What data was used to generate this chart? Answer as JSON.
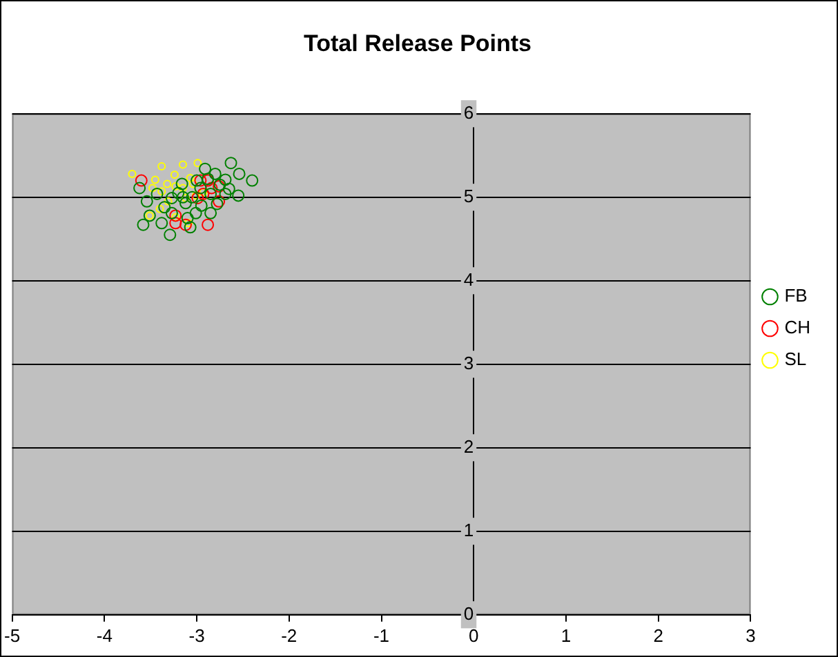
{
  "chart_data": {
    "type": "scatter",
    "title": "Total Release Points",
    "xlim": [
      -5,
      3
    ],
    "xticks": [
      -5,
      -4,
      -3,
      -2,
      -1,
      0,
      1,
      2,
      3
    ],
    "ylim": [
      0,
      6
    ],
    "yticks": [
      0,
      1,
      2,
      3,
      4,
      5,
      6
    ],
    "grid": "y",
    "legend": "right",
    "marker": "circle",
    "series": [
      {
        "name": "FB",
        "color": "#008000",
        "x": [
          -2.4,
          -3.58,
          -3.29,
          -2.63,
          -2.55,
          -3.62,
          -3.54,
          -3.38,
          -3.07,
          -2.85,
          -2.69,
          -2.54,
          -2.8,
          -2.96,
          -3.12,
          -3.27,
          -3.43,
          -3.16,
          -3.01,
          -2.69,
          -2.85,
          -3.27,
          -3.51,
          -2.91,
          -3.05,
          -2.95,
          -3.2,
          -2.75,
          -3.35,
          -2.88,
          -3.1,
          -2.65,
          -3.0,
          -3.15,
          -2.78
        ],
        "values": [
          5.2,
          4.67,
          4.55,
          5.41,
          5.02,
          5.11,
          4.95,
          4.69,
          4.64,
          4.81,
          5.04,
          5.28,
          5.28,
          5.11,
          4.93,
          4.81,
          5.04,
          5.16,
          4.81,
          5.21,
          5.04,
          4.99,
          4.78,
          5.34,
          5.0,
          4.9,
          5.05,
          5.15,
          4.88,
          5.22,
          4.75,
          5.1,
          5.2,
          5.0,
          4.92
        ]
      },
      {
        "name": "CH",
        "color": "#ff0000",
        "x": [
          -3.6,
          -3.23,
          -3.23,
          -3.12,
          -2.88,
          -2.93,
          -2.84,
          -2.76,
          -2.76,
          -2.96,
          -2.88,
          -2.99
        ],
        "values": [
          5.2,
          4.78,
          4.69,
          4.67,
          4.67,
          5.04,
          5.11,
          5.13,
          4.95,
          5.2,
          5.2,
          4.99
        ]
      },
      {
        "name": "SL",
        "color": "#ffff00",
        "x": [
          -3.7,
          -3.38,
          -3.15,
          -2.99,
          -3.24,
          -3.45,
          -3.48,
          -3.38,
          -3.15,
          -3.07,
          -3.23,
          -3.31,
          -3.4,
          -3.51,
          -3.12,
          -3.01,
          -2.93,
          -3.23,
          -3.09,
          -3.32,
          -3.04
        ],
        "values": [
          5.28,
          5.37,
          5.39,
          5.41,
          5.27,
          5.21,
          5.11,
          5.07,
          5.11,
          5.23,
          5.13,
          4.95,
          4.86,
          4.78,
          4.99,
          5.02,
          5.06,
          4.76,
          4.69,
          5.16,
          5.16
        ]
      }
    ]
  }
}
